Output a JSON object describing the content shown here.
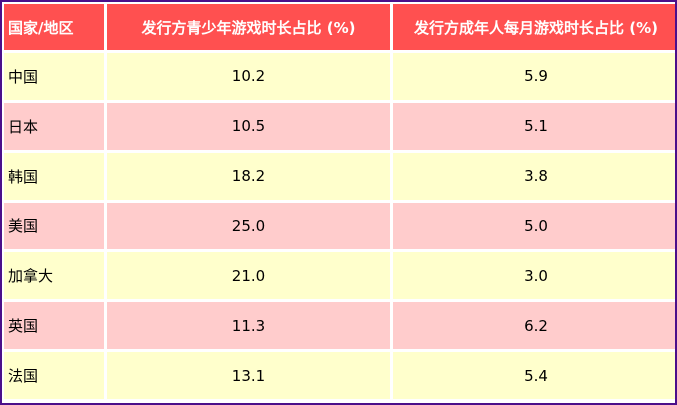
{
  "table": {
    "headers": [
      "国家/地区",
      "发行方青少年游戏时长占比 (%)",
      "发行方成年人每月游戏时长占比 (%)"
    ],
    "rows": [
      {
        "region": "中国",
        "youth": "10.2",
        "adult": "5.9"
      },
      {
        "region": "日本",
        "youth": "10.5",
        "adult": "5.1"
      },
      {
        "region": "韩国",
        "youth": "18.2",
        "adult": "3.8"
      },
      {
        "region": "美国",
        "youth": "25.0",
        "adult": "5.0"
      },
      {
        "region": "加拿大",
        "youth": "21.0",
        "adult": "3.0"
      },
      {
        "region": "英国",
        "youth": "11.3",
        "adult": "6.2"
      },
      {
        "region": "法国",
        "youth": "13.1",
        "adult": "5.4"
      }
    ]
  },
  "colors": {
    "header_bg": "#ff5050",
    "row_odd_bg": "#ffffcc",
    "row_even_bg": "#ffcccc",
    "frame_border": "#4b0f8a"
  }
}
